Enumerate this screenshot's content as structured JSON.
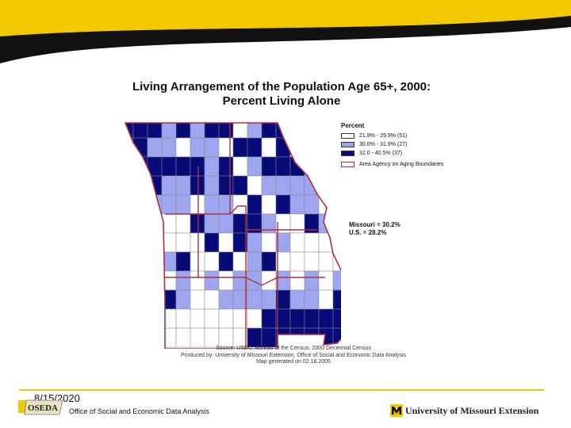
{
  "title": {
    "line1": "Living Arrangement of the Population Age 65+, 2000:",
    "line2": "Percent Living Alone"
  },
  "legend": {
    "title": "Percent",
    "items": [
      {
        "label": "21.9% - 29.9% (51)",
        "color": "#ffffff"
      },
      {
        "label": "30.0% - 31.9% (27)",
        "color": "#9ea6f0"
      },
      {
        "label": "32.0 - 40.5% (37)",
        "color": "#070b78"
      }
    ],
    "boundary_label": "Area Agency on Aging Boundaries",
    "boundary_color": "#b03040"
  },
  "stats": {
    "missouri": "Missouri = 30.2%",
    "us": "U.S. = 28.2%"
  },
  "source": {
    "line1": "Source: USDC, Bureau of the Census, 2000 Decennial Census",
    "line2": "Produced by: University of Missouri Extension, Office of Social and Economic Data Analysis",
    "line3": "Map generated on 02.18.2005"
  },
  "footer": {
    "date": "8/15/2020",
    "logo_text": "OSEDA",
    "office": "Office of Social and Economic Data Analysis",
    "university": "University of Missouri Extension"
  },
  "colors": {
    "brand_gold": "#f2c800",
    "band_black": "#111111"
  }
}
